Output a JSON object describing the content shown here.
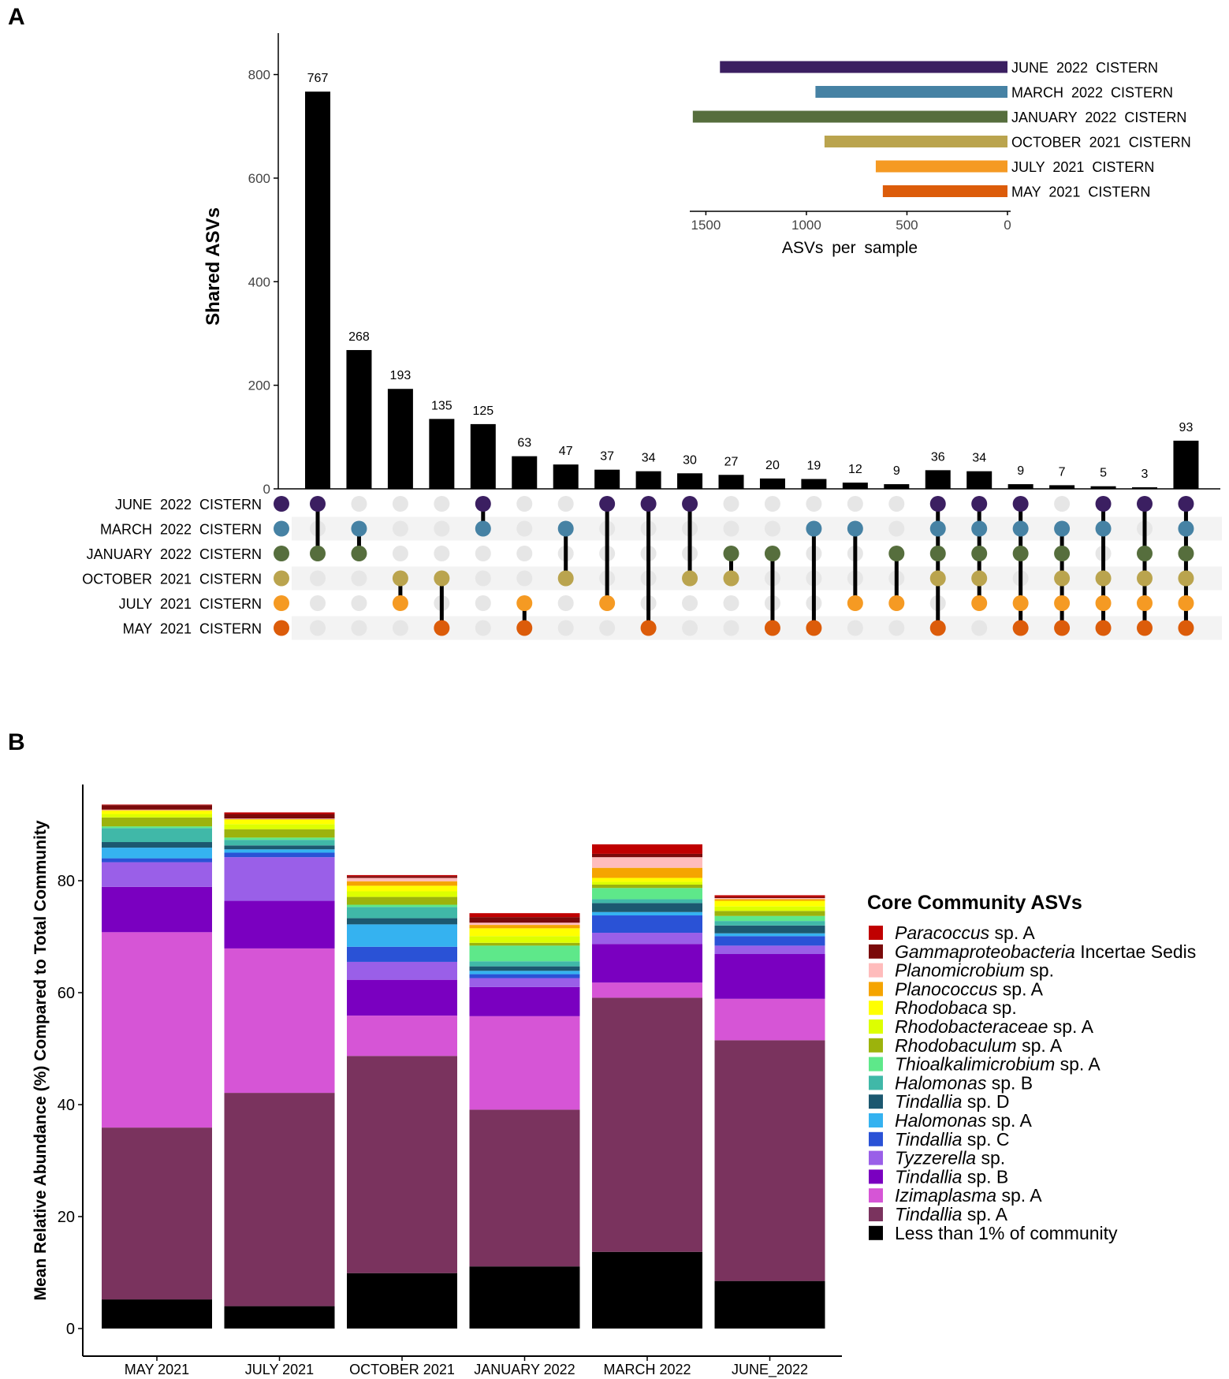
{
  "panel_labels": {
    "a": "A",
    "b": "B"
  },
  "colors": {
    "JUNE 2022 CISTERN": "#3b1f61",
    "MARCH 2022 CISTERN": "#4682a4",
    "JANUARY 2022 CISTERN": "#566e3d",
    "OCTOBER 2021 CISTERN": "#baa44e",
    "JULY 2021 CISTERN": "#f59a23",
    "MAY 2021 CISTERN": "#dc5c0a",
    "inactive_dot": "#e6e6e6",
    "stripe": "#f3f3f3",
    "bar": "#000000"
  },
  "chart_data": [
    {
      "type": "upset",
      "ylabel": "Shared ASVs",
      "ylim": [
        0,
        880
      ],
      "yticks": [
        0,
        200,
        400,
        600,
        800
      ],
      "sets": [
        "JUNE 2022 CISTERN",
        "MARCH 2022 CISTERN",
        "JANUARY 2022 CISTERN",
        "OCTOBER 2021 CISTERN",
        "JULY 2021 CISTERN",
        "MAY 2021 CISTERN"
      ],
      "intersections": [
        {
          "value": 767,
          "members": [
            "JUNE 2022 CISTERN",
            "JANUARY 2022 CISTERN"
          ]
        },
        {
          "value": 268,
          "members": [
            "MARCH 2022 CISTERN",
            "JANUARY 2022 CISTERN"
          ]
        },
        {
          "value": 193,
          "members": [
            "OCTOBER 2021 CISTERN",
            "JULY 2021 CISTERN"
          ]
        },
        {
          "value": 135,
          "members": [
            "OCTOBER 2021 CISTERN",
            "MAY 2021 CISTERN"
          ]
        },
        {
          "value": 125,
          "members": [
            "JUNE 2022 CISTERN",
            "MARCH 2022 CISTERN"
          ]
        },
        {
          "value": 63,
          "members": [
            "JULY 2021 CISTERN",
            "MAY 2021 CISTERN"
          ]
        },
        {
          "value": 47,
          "members": [
            "MARCH 2022 CISTERN",
            "OCTOBER 2021 CISTERN"
          ]
        },
        {
          "value": 37,
          "members": [
            "JUNE 2022 CISTERN",
            "JULY 2021 CISTERN"
          ]
        },
        {
          "value": 34,
          "members": [
            "JUNE 2022 CISTERN",
            "MAY 2021 CISTERN"
          ]
        },
        {
          "value": 30,
          "members": [
            "JUNE 2022 CISTERN",
            "OCTOBER 2021 CISTERN"
          ]
        },
        {
          "value": 27,
          "members": [
            "JANUARY 2022 CISTERN",
            "OCTOBER 2021 CISTERN"
          ]
        },
        {
          "value": 20,
          "members": [
            "JANUARY 2022 CISTERN",
            "MAY 2021 CISTERN"
          ]
        },
        {
          "value": 19,
          "members": [
            "MARCH 2022 CISTERN",
            "MAY 2021 CISTERN"
          ]
        },
        {
          "value": 12,
          "members": [
            "MARCH 2022 CISTERN",
            "JULY 2021 CISTERN"
          ]
        },
        {
          "value": 9,
          "members": [
            "JANUARY 2022 CISTERN",
            "JULY 2021 CISTERN"
          ]
        },
        {
          "value": 36,
          "members": [
            "JUNE 2022 CISTERN",
            "MARCH 2022 CISTERN",
            "JANUARY 2022 CISTERN",
            "OCTOBER 2021 CISTERN",
            "MAY 2021 CISTERN"
          ]
        },
        {
          "value": 34,
          "members": [
            "JUNE 2022 CISTERN",
            "MARCH 2022 CISTERN",
            "JANUARY 2022 CISTERN",
            "OCTOBER 2021 CISTERN",
            "JULY 2021 CISTERN"
          ]
        },
        {
          "value": 9,
          "members": [
            "JUNE 2022 CISTERN",
            "MARCH 2022 CISTERN",
            "JANUARY 2022 CISTERN",
            "JULY 2021 CISTERN",
            "MAY 2021 CISTERN"
          ]
        },
        {
          "value": 7,
          "members": [
            "MARCH 2022 CISTERN",
            "JANUARY 2022 CISTERN",
            "OCTOBER 2021 CISTERN",
            "JULY 2021 CISTERN",
            "MAY 2021 CISTERN"
          ]
        },
        {
          "value": 5,
          "members": [
            "JUNE 2022 CISTERN",
            "MARCH 2022 CISTERN",
            "OCTOBER 2021 CISTERN",
            "JULY 2021 CISTERN",
            "MAY 2021 CISTERN"
          ]
        },
        {
          "value": 3,
          "members": [
            "JUNE 2022 CISTERN",
            "JANUARY 2022 CISTERN",
            "OCTOBER 2021 CISTERN",
            "JULY 2021 CISTERN",
            "MAY 2021 CISTERN"
          ]
        },
        {
          "value": 93,
          "members": [
            "JUNE 2022 CISTERN",
            "MARCH 2022 CISTERN",
            "JANUARY 2022 CISTERN",
            "OCTOBER 2021 CISTERN",
            "JULY 2021 CISTERN",
            "MAY 2021 CISTERN"
          ]
        }
      ],
      "set_sizes": {
        "xlabel": "ASVs per sample",
        "xticks": [
          1500,
          1000,
          500,
          0
        ],
        "xlim": [
          0,
          1580
        ],
        "values": [
          {
            "set": "JUNE 2022 CISTERN",
            "value": 1430
          },
          {
            "set": "MARCH 2022 CISTERN",
            "value": 955
          },
          {
            "set": "JANUARY 2022 CISTERN",
            "value": 1565
          },
          {
            "set": "OCTOBER 2021 CISTERN",
            "value": 910
          },
          {
            "set": "JULY 2021 CISTERN",
            "value": 655
          },
          {
            "set": "MAY 2021 CISTERN",
            "value": 620
          }
        ]
      }
    },
    {
      "type": "stacked_bar",
      "ylabel": "Mean Relative Abundance (%) Compared to Total Community",
      "ylim": [
        0,
        97
      ],
      "yticks": [
        0,
        20,
        40,
        60,
        80
      ],
      "categories": [
        "MAY  2021",
        "JULY  2021",
        "OCTOBER  2021",
        "JANUARY  2022",
        "MARCH 2022",
        "JUNE_2022"
      ],
      "legend_title": "Core Community ASVs",
      "legend": [
        {
          "italic": "Paracoccus",
          "rest": " sp. A",
          "color": "#c00000"
        },
        {
          "italic": "Gammaproteobacteria",
          "rest": " Incertae Sedis",
          "color": "#7a0a0a"
        },
        {
          "italic": "Planomicrobium",
          "rest": " sp.",
          "color": "#ffbcbc"
        },
        {
          "italic": "Planococcus",
          "rest": " sp. A",
          "color": "#f5a400"
        },
        {
          "italic": "Rhodobaca",
          "rest": " sp.",
          "color": "#ffff00"
        },
        {
          "italic": "Rhodobacteraceae",
          "rest": " sp. A",
          "color": "#ddff00"
        },
        {
          "italic": "Rhodobaculum",
          "rest": " sp. A",
          "color": "#9cb30c"
        },
        {
          "italic": "Thioalkalimicrobium",
          "rest": " sp. A",
          "color": "#5ee88a"
        },
        {
          "italic": "Halomonas",
          "rest": " sp. B",
          "color": "#40b8a8"
        },
        {
          "italic": "Tindallia",
          "rest": " sp. D",
          "color": "#1c5870"
        },
        {
          "italic": "Halomonas",
          "rest": " sp. A",
          "color": "#35b2f0"
        },
        {
          "italic": "Tindallia",
          "rest": " sp. C",
          "color": "#2a52d6"
        },
        {
          "italic": "Tyzzerella",
          "rest": " sp.",
          "color": "#9a5fe8"
        },
        {
          "italic": "Tindallia",
          "rest": " sp. B",
          "color": "#7a00c0"
        },
        {
          "italic": "Izimaplasma",
          "rest": " sp. A",
          "color": "#d655d6"
        },
        {
          "italic": "Tindallia",
          "rest": " sp. A",
          "color": "#7a335e"
        },
        {
          "italic": "",
          "rest": "Less than 1% of community",
          "color": "#000000"
        }
      ],
      "series": [
        {
          "name": "Less than 1% of community",
          "values": [
            5.2,
            4.0,
            9.9,
            11.1,
            13.7,
            8.5
          ]
        },
        {
          "name": "Tindallia sp. A",
          "values": [
            30.7,
            38.1,
            38.8,
            28.0,
            45.4,
            43.0
          ]
        },
        {
          "name": "Izimaplasma sp. A",
          "values": [
            34.9,
            25.8,
            7.2,
            16.7,
            2.7,
            7.4
          ]
        },
        {
          "name": "Tindallia sp. B",
          "values": [
            8.1,
            8.5,
            6.4,
            5.2,
            6.9,
            8.0
          ]
        },
        {
          "name": "Tyzzerella sp.",
          "values": [
            4.4,
            7.8,
            3.2,
            1.6,
            2.0,
            1.5
          ]
        },
        {
          "name": "Tindallia sp. C",
          "values": [
            0.7,
            0.8,
            2.7,
            0.7,
            3.1,
            1.7
          ]
        },
        {
          "name": "Halomonas sp. A",
          "values": [
            1.9,
            0.6,
            4.0,
            0.6,
            0.6,
            0.5
          ]
        },
        {
          "name": "Tindallia sp. D",
          "values": [
            1.0,
            0.7,
            1.1,
            0.8,
            1.6,
            1.4
          ]
        },
        {
          "name": "Halomonas sp. B",
          "values": [
            2.5,
            1.0,
            2.0,
            0.9,
            0.7,
            0.8
          ]
        },
        {
          "name": "Thioalkalimicrobium sp. A",
          "values": [
            0.3,
            0.4,
            0.4,
            2.8,
            2.0,
            0.9
          ]
        },
        {
          "name": "Rhodobaculum sp. A",
          "values": [
            1.6,
            1.5,
            1.4,
            0.5,
            0.6,
            0.9
          ]
        },
        {
          "name": "Rhodobacteraceae sp. A",
          "values": [
            0.6,
            0.9,
            1.0,
            1.2,
            0.5,
            0.8
          ]
        },
        {
          "name": "Rhodobaca sp.",
          "values": [
            0.6,
            0.8,
            1.0,
            1.4,
            0.7,
            1.0
          ]
        },
        {
          "name": "Planococcus sp. A",
          "values": [
            0.1,
            0.1,
            0.8,
            0.6,
            1.8,
            0.3
          ]
        },
        {
          "name": "Planomicrobium sp.",
          "values": [
            0.1,
            0.1,
            0.6,
            0.4,
            1.9,
            0.2
          ]
        },
        {
          "name": "Gammaproteobacteria Incertae Sedis",
          "values": [
            0.8,
            0.8,
            0.3,
            1.0,
            0.6,
            0.2
          ]
        },
        {
          "name": "Paracoccus sp. A",
          "values": [
            0.1,
            0.3,
            0.2,
            0.7,
            1.7,
            0.3
          ]
        }
      ]
    }
  ]
}
